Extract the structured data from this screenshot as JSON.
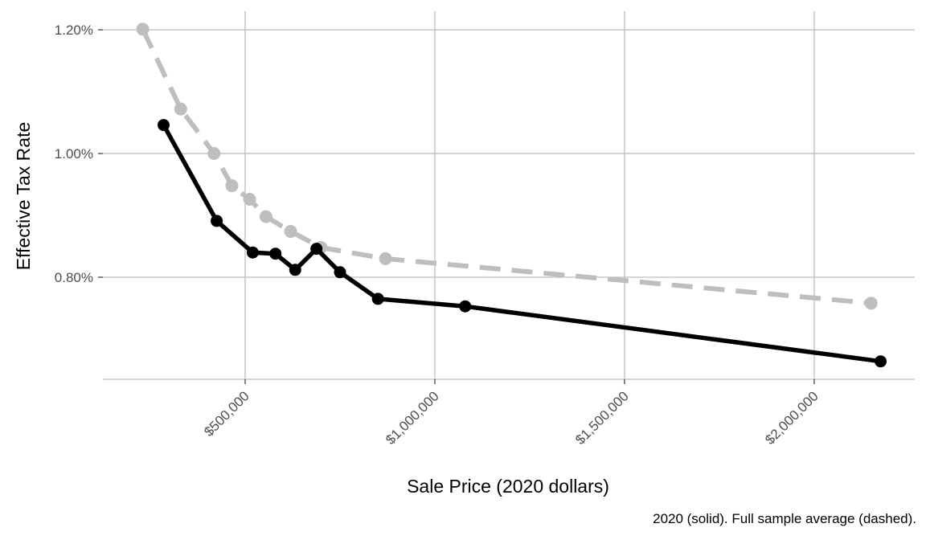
{
  "chart_data": {
    "type": "line",
    "xlabel": "Sale Price (2020 dollars)",
    "ylabel": "Effective Tax Rate",
    "caption": "2020 (solid). Full sample average (dashed).",
    "x_ticks": [
      {
        "value": 500000,
        "label": "$500,000"
      },
      {
        "value": 1000000,
        "label": "$1,000,000"
      },
      {
        "value": 1500000,
        "label": "$1,500,000"
      },
      {
        "value": 2000000,
        "label": "$2,000,000"
      }
    ],
    "y_ticks": [
      {
        "value": 0.8,
        "label": "0.80%"
      },
      {
        "value": 1.0,
        "label": "1.00%"
      },
      {
        "value": 1.2,
        "label": "1.20%"
      }
    ],
    "xlim": [
      125000,
      2265000
    ],
    "ylim": [
      0.635,
      1.23
    ],
    "grid": true,
    "series": [
      {
        "line_style": "dashed",
        "color": "#bebebe",
        "points": [
          [
            230000,
            1.201
          ],
          [
            330000,
            1.072
          ],
          [
            418000,
            1.0
          ],
          [
            465000,
            0.948
          ],
          [
            512000,
            0.926
          ],
          [
            555000,
            0.898
          ],
          [
            620000,
            0.874
          ],
          [
            700000,
            0.848
          ],
          [
            870000,
            0.83
          ],
          [
            2150000,
            0.758
          ]
        ]
      },
      {
        "line_style": "solid",
        "color": "#000000",
        "points": [
          [
            285000,
            1.046
          ],
          [
            425000,
            0.891
          ],
          [
            520000,
            0.84
          ],
          [
            580000,
            0.838
          ],
          [
            632000,
            0.812
          ],
          [
            688000,
            0.846
          ],
          [
            750000,
            0.808
          ],
          [
            850000,
            0.765
          ],
          [
            1080000,
            0.753
          ],
          [
            2175000,
            0.664
          ]
        ]
      }
    ]
  }
}
